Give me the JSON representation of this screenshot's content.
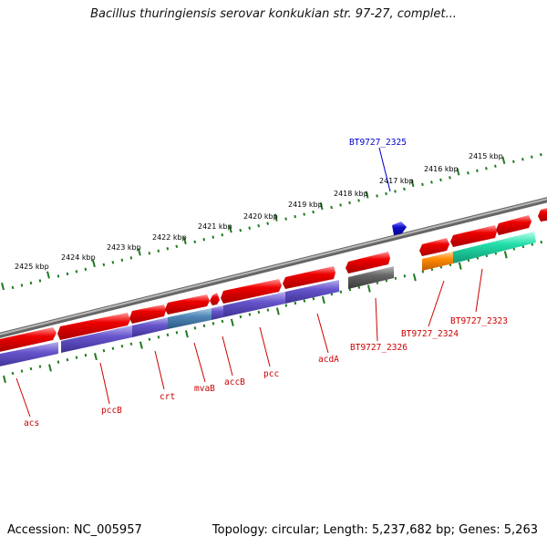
{
  "title": "Bacillus thuringiensis serovar konkukian str. 97-27, complet...",
  "footer": {
    "accession": "Accession: NC_005957",
    "summary": "Topology: circular; Length: 5,237,682 bp; Genes: 5,263"
  },
  "colors": {
    "backbone": "#8a8a8a",
    "tick": "#1e7a1e",
    "gene_red": "#ee0000",
    "gene_purple": "#6655cc",
    "gene_steel": "#4f86b8",
    "gene_gray": "#666666",
    "gene_orange": "#ff8800",
    "gene_teal": "#22ddaa",
    "gene_blue": "#1111cc",
    "label_red": "#cc0000",
    "label_blue": "#0000cc"
  },
  "chart_data": {
    "type": "genome-map",
    "axis_unit": "kbp",
    "kbp_labels": [
      "2425 kbp",
      "2424 kbp",
      "2423 kbp",
      "2422 kbp",
      "2421 kbp",
      "2420 kbp",
      "2419 kbp",
      "2418 kbp",
      "2417 kbp",
      "2416 kbp",
      "2415 kbp"
    ],
    "gene_labels": [
      {
        "name": "acs",
        "color": "red"
      },
      {
        "name": "pccB",
        "color": "red"
      },
      {
        "name": "crt",
        "color": "red"
      },
      {
        "name": "mvaB",
        "color": "red"
      },
      {
        "name": "accB",
        "color": "red"
      },
      {
        "name": "pcc",
        "color": "red"
      },
      {
        "name": "acdA",
        "color": "red"
      },
      {
        "name": "BT9727_2326",
        "color": "red"
      },
      {
        "name": "BT9727_2324",
        "color": "red"
      },
      {
        "name": "BT9727_2323",
        "color": "red"
      },
      {
        "name": "BT9727_2325",
        "color": "blue"
      }
    ]
  }
}
